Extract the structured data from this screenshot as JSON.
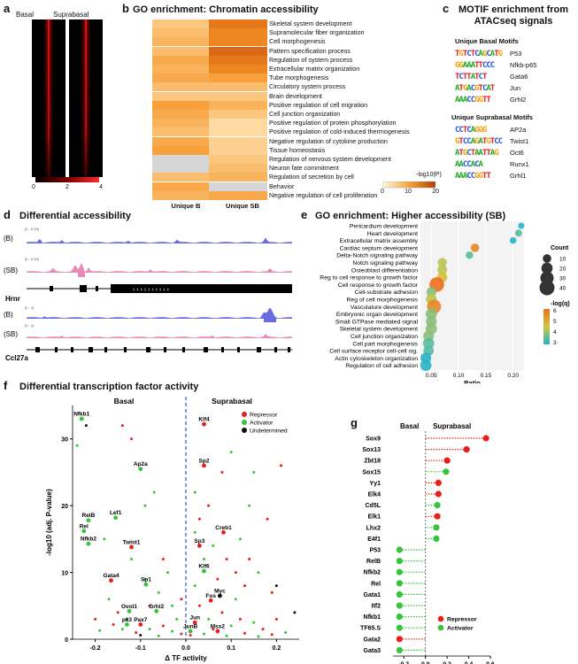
{
  "panels": {
    "a": {
      "label": "a",
      "col_basal": "Basal",
      "col_suprabasal": "Suprabasal",
      "colorbar_ticks": [
        "0",
        "2",
        "4"
      ]
    },
    "b": {
      "label": "b",
      "title": "GO enrichment: Chromatin accessibility",
      "terms": [
        "Skeletal system development",
        "Supramolecular fiber organization",
        "Cell morphogenesis",
        "Pattern specification process",
        "Regulation of system process",
        "Extracellular matrix organization",
        "Tube morphogenesis",
        "Circulatory system process",
        "Brain development",
        "Positive regulation of cell migration",
        "Cell junction organization",
        "Positive regulation of protein phosphorylation",
        "Positive regulation of cold-induced thermogenesis",
        "Negative regulation of cytokine production",
        "Tissue homeostasis",
        "Regulation of nervous system development",
        "Neuron fate commitment",
        "Regulation of secretion by cell",
        "Behavior",
        "Negative regulation of cell proliferation"
      ],
      "values_B": [
        5,
        6,
        7,
        6,
        8,
        7,
        8,
        6,
        5,
        9,
        8,
        7,
        6,
        8,
        9,
        0,
        0,
        6,
        8,
        7
      ],
      "values_SB": [
        14,
        12,
        12,
        16,
        14,
        12,
        9,
        6,
        5,
        7,
        5,
        3,
        3,
        4,
        4,
        5,
        6,
        7,
        0,
        8
      ],
      "col_B": "Unique B",
      "col_SB": "Unique SB",
      "legend_title": "-log10(P)",
      "legend_ticks": [
        "0",
        "10",
        "20"
      ],
      "colors": {
        "low": "#fff7e6",
        "high": "#c84a06",
        "na": "#d6d6d6"
      }
    },
    "c": {
      "label": "c",
      "title": "MOTIF enrichment from ATACseq signals",
      "basal_header": "Unique Basal Motifs",
      "suprabasal_header": "Unique Suprabasal Motifs",
      "basal_motifs": [
        {
          "seq": "TGTCTCAGCATG",
          "name": "P53"
        },
        {
          "seq": "GGAAATTCCC",
          "name": "Nfkb-p65"
        },
        {
          "seq": "TCTTATCT",
          "name": "Gata6"
        },
        {
          "seq": "ATGACGTCAT",
          "name": "Jun"
        },
        {
          "seq": "AAACCGGTT",
          "name": "Grhl2"
        }
      ],
      "suprabasal_motifs": [
        {
          "seq": "CCTCAGGG",
          "name": "AP2a"
        },
        {
          "seq": "GTCCAGATGTCC",
          "name": "Twist1"
        },
        {
          "seq": "ATGCTAATTAG",
          "name": "Oct6"
        },
        {
          "seq": "AACCACA",
          "name": "Runx1"
        },
        {
          "seq": "AAACCGGTT",
          "name": "Grhl1"
        }
      ]
    },
    "d": {
      "label": "d",
      "title": "Differential accessibility",
      "tracks": [
        {
          "label": "(B)",
          "range": "[0 - 0.33]"
        },
        {
          "label": "(SB)",
          "range": "[0 - 0.33]"
        },
        {
          "label": "(B)",
          "range": "[0 - 1]"
        },
        {
          "label": "(SB)",
          "range": "[0 - 1]"
        }
      ],
      "genes": [
        "Hrnr",
        "Ccl27a"
      ]
    },
    "e": {
      "label": "e",
      "title": "GO enrichment: Higher accessibility (SB)",
      "xlabel": "Ratio",
      "count_title": "Count",
      "count_ticks": [
        "10",
        "20",
        "30",
        "40"
      ],
      "q_title": "-log(q)",
      "q_ticks": [
        "6",
        "5",
        "4",
        "3"
      ]
    },
    "f": {
      "label": "f",
      "title": "Differential transcription factor activity",
      "side_basal": "Basal",
      "side_suprabasal": "Suprabasal",
      "legend": [
        "Repressor",
        "Activator",
        "Undetermined"
      ]
    },
    "g": {
      "label": "g",
      "side_basal": "Basal",
      "side_suprabasal": "Suprabasal",
      "legend": [
        "Repressor",
        "Activator"
      ]
    }
  },
  "chart_data": [
    {
      "type": "scatter",
      "id": "panel-e",
      "title": "GO enrichment: Higher accessibility (SB)",
      "xlabel": "Ratio",
      "ylabel": "",
      "xlim": [
        0.03,
        0.22
      ],
      "x_ticks": [
        "0.05",
        "0.10",
        "0.15",
        "0.20"
      ],
      "categories": [
        "Pericardium development",
        "Heart development",
        "Extracellular matrix assembly",
        "Cardiac septum development",
        "Delta-Notch signaling pathway",
        "Notch signaling pathway",
        "Osteoblast differentiation",
        "Reg to cell response to growth factor",
        "Cell response to growth factor",
        "Cell-substrate adhesion",
        "Reg of cell morphogenesis",
        "Vasculature development",
        "Embryonic organ development",
        "Small GTPase mediated signal",
        "Skeletal system development",
        "Cell junction organization",
        "Cell part morphogenesis",
        "Cell surface receptor cell-cell sig.",
        "Actin cytoskeleton organization",
        "Regulation of cell adhesion"
      ],
      "ratio": [
        0.215,
        0.21,
        0.2,
        0.13,
        0.12,
        0.07,
        0.07,
        0.07,
        0.06,
        0.05,
        0.05,
        0.055,
        0.05,
        0.05,
        0.05,
        0.045,
        0.045,
        0.045,
        0.04,
        0.04
      ],
      "count": [
        4,
        6,
        5,
        10,
        7,
        12,
        14,
        15,
        38,
        14,
        18,
        34,
        20,
        18,
        20,
        18,
        20,
        16,
        18,
        20
      ],
      "neglogq": [
        3,
        3.5,
        3,
        6,
        3.5,
        4.5,
        4.5,
        5,
        6.5,
        4,
        4.5,
        6,
        4,
        4,
        4,
        4,
        3.5,
        3.5,
        3,
        3
      ],
      "count_legend": [
        10,
        20,
        30,
        40
      ],
      "q_legend": [
        3,
        4,
        5,
        6
      ]
    },
    {
      "type": "scatter",
      "id": "panel-f",
      "title": "Differential transcription factor activity",
      "xlabel": "Δ TF activity",
      "ylabel": "-log10 (adj. P-value)",
      "xlim": [
        -0.25,
        0.25
      ],
      "ylim": [
        0,
        35
      ],
      "x_ticks": [
        "-0.2",
        "-0.1",
        "0.0",
        "0.1",
        "0.2"
      ],
      "y_ticks": [
        "0",
        "10",
        "20",
        "30"
      ],
      "labeled": [
        {
          "name": "Nfkb1",
          "x": -0.23,
          "y": 33,
          "t": "A"
        },
        {
          "name": "Klf4",
          "x": 0.04,
          "y": 32.2,
          "t": "R"
        },
        {
          "name": "Ap2a",
          "x": -0.1,
          "y": 25.5,
          "t": "A"
        },
        {
          "name": "Sp2",
          "x": 0.04,
          "y": 26,
          "t": "R"
        },
        {
          "name": "RelB",
          "x": -0.215,
          "y": 17.8,
          "t": "A"
        },
        {
          "name": "Lef1",
          "x": -0.155,
          "y": 18.2,
          "t": "A"
        },
        {
          "name": "Rel",
          "x": -0.225,
          "y": 16.2,
          "t": "A"
        },
        {
          "name": "Nfkb2",
          "x": -0.215,
          "y": 14.3,
          "t": "A"
        },
        {
          "name": "Creb1",
          "x": 0.083,
          "y": 16,
          "t": "R"
        },
        {
          "name": "Twist1",
          "x": -0.12,
          "y": 13.8,
          "t": "R"
        },
        {
          "name": "Sp3",
          "x": 0.03,
          "y": 14,
          "t": "R"
        },
        {
          "name": "Klf6",
          "x": 0.04,
          "y": 10.2,
          "t": "A"
        },
        {
          "name": "Gata4",
          "x": -0.165,
          "y": 8.8,
          "t": "R"
        },
        {
          "name": "Sp1",
          "x": -0.088,
          "y": 8.2,
          "t": "A"
        },
        {
          "name": "Fos",
          "x": 0.055,
          "y": 5.8,
          "t": "R"
        },
        {
          "name": "Myc",
          "x": 0.075,
          "y": 6.5,
          "t": "U"
        },
        {
          "name": "Ovol1",
          "x": -0.125,
          "y": 4.2,
          "t": "A"
        },
        {
          "name": "Grhl2",
          "x": -0.065,
          "y": 4.2,
          "t": "A"
        },
        {
          "name": "p63",
          "x": -0.13,
          "y": 2.2,
          "t": "A"
        },
        {
          "name": "Pax7",
          "x": -0.1,
          "y": 2.2,
          "t": "R"
        },
        {
          "name": "Jun",
          "x": 0.02,
          "y": 2.5,
          "t": "R"
        },
        {
          "name": "JunB",
          "x": 0.01,
          "y": 1.2,
          "t": "A"
        },
        {
          "name": "Msx2",
          "x": 0.07,
          "y": 1.2,
          "t": "R"
        }
      ],
      "background": [
        [
          -0.24,
          29,
          "A"
        ],
        [
          -0.22,
          32,
          "U"
        ],
        [
          -0.14,
          32,
          "R"
        ],
        [
          -0.12,
          30,
          "R"
        ],
        [
          -0.07,
          22,
          "A"
        ],
        [
          -0.09,
          20,
          "A"
        ],
        [
          -0.18,
          15,
          "A"
        ],
        [
          -0.12,
          12,
          "A"
        ],
        [
          -0.05,
          12,
          "R"
        ],
        [
          -0.04,
          10,
          "A"
        ],
        [
          -0.06,
          7,
          "A"
        ],
        [
          -0.08,
          5,
          "R"
        ],
        [
          -0.15,
          4,
          "R"
        ],
        [
          -0.17,
          6,
          "A"
        ],
        [
          -0.2,
          3,
          "R"
        ],
        [
          -0.14,
          1.5,
          "A"
        ],
        [
          -0.11,
          1,
          "R"
        ],
        [
          -0.08,
          1.5,
          "A"
        ],
        [
          -0.05,
          2,
          "R"
        ],
        [
          -0.03,
          1.2,
          "A"
        ],
        [
          -0.02,
          3,
          "A"
        ],
        [
          -0.01,
          0.8,
          "R"
        ],
        [
          -0.06,
          0.5,
          "A"
        ],
        [
          -0.1,
          0.6,
          "U"
        ],
        [
          -0.13,
          3,
          "A"
        ],
        [
          -0.16,
          2.2,
          "R"
        ],
        [
          -0.19,
          1.3,
          "A"
        ],
        [
          -0.03,
          5,
          "A"
        ],
        [
          -0.01,
          6,
          "R"
        ],
        [
          -0.09,
          9,
          "A"
        ],
        [
          0.02,
          22,
          "A"
        ],
        [
          0.05,
          20,
          "R"
        ],
        [
          0.08,
          25,
          "R"
        ],
        [
          0.1,
          28,
          "A"
        ],
        [
          0.15,
          25,
          "A"
        ],
        [
          0.21,
          26,
          "R"
        ],
        [
          0.18,
          18,
          "R"
        ],
        [
          0.14,
          20,
          "A"
        ],
        [
          0.12,
          15,
          "A"
        ],
        [
          0.09,
          12,
          "R"
        ],
        [
          0.06,
          14,
          "A"
        ],
        [
          0.03,
          18,
          "R"
        ],
        [
          0.02,
          8,
          "A"
        ],
        [
          0.03,
          5,
          "R"
        ],
        [
          0.05,
          3,
          "A"
        ],
        [
          0.08,
          4,
          "R"
        ],
        [
          0.1,
          2,
          "A"
        ],
        [
          0.12,
          3,
          "R"
        ],
        [
          0.15,
          2.5,
          "A"
        ],
        [
          0.17,
          1.5,
          "R"
        ],
        [
          0.2,
          3,
          "R"
        ],
        [
          0.22,
          1,
          "A"
        ],
        [
          0.13,
          8,
          "R"
        ],
        [
          0.16,
          10,
          "A"
        ],
        [
          0.19,
          7,
          "R"
        ],
        [
          0.2,
          8,
          "U"
        ],
        [
          0.24,
          4,
          "U"
        ],
        [
          0.11,
          6,
          "A"
        ],
        [
          0.07,
          9,
          "R"
        ],
        [
          0.14,
          12,
          "R"
        ],
        [
          0.01,
          0.6,
          "R"
        ],
        [
          0.04,
          0.8,
          "A"
        ],
        [
          0.06,
          1.5,
          "R"
        ],
        [
          0.09,
          0.5,
          "A"
        ],
        [
          0.13,
          0.9,
          "R"
        ],
        [
          0.16,
          0.4,
          "A"
        ],
        [
          0.19,
          0.7,
          "R"
        ],
        [
          0.11,
          10,
          "R"
        ],
        [
          0.04,
          12,
          "A"
        ],
        [
          0.02,
          16,
          "A"
        ]
      ]
    },
    {
      "type": "bar",
      "id": "panel-g",
      "title": "",
      "xlabel": "Δ TF activity",
      "xlim": [
        -0.3,
        0.6
      ],
      "x_ticks": [
        "-0.2",
        "0.0",
        "0.2",
        "0.4",
        "0.6"
      ],
      "categories": [
        "Sox9",
        "Sox13",
        "Zbt18",
        "Sox15",
        "Yy1",
        "Elk4",
        "Cd5L",
        "Elk1",
        "Lhx2",
        "E4f1",
        "P53",
        "RelB",
        "Nfkb2",
        "Rel",
        "Gata1",
        "Itf2",
        "Nfkb1",
        "TF65.S",
        "Gata2",
        "Gata3"
      ],
      "values": [
        0.56,
        0.38,
        0.2,
        0.19,
        0.12,
        0.12,
        0.11,
        0.11,
        0.1,
        0.1,
        -0.24,
        -0.24,
        -0.24,
        -0.24,
        -0.24,
        -0.24,
        -0.24,
        -0.24,
        -0.24,
        -0.24
      ],
      "types": [
        "R",
        "R",
        "R",
        "A",
        "R",
        "R",
        "A",
        "R",
        "A",
        "A",
        "A",
        "A",
        "A",
        "A",
        "A",
        "A",
        "A",
        "A",
        "R",
        "A"
      ]
    }
  ]
}
